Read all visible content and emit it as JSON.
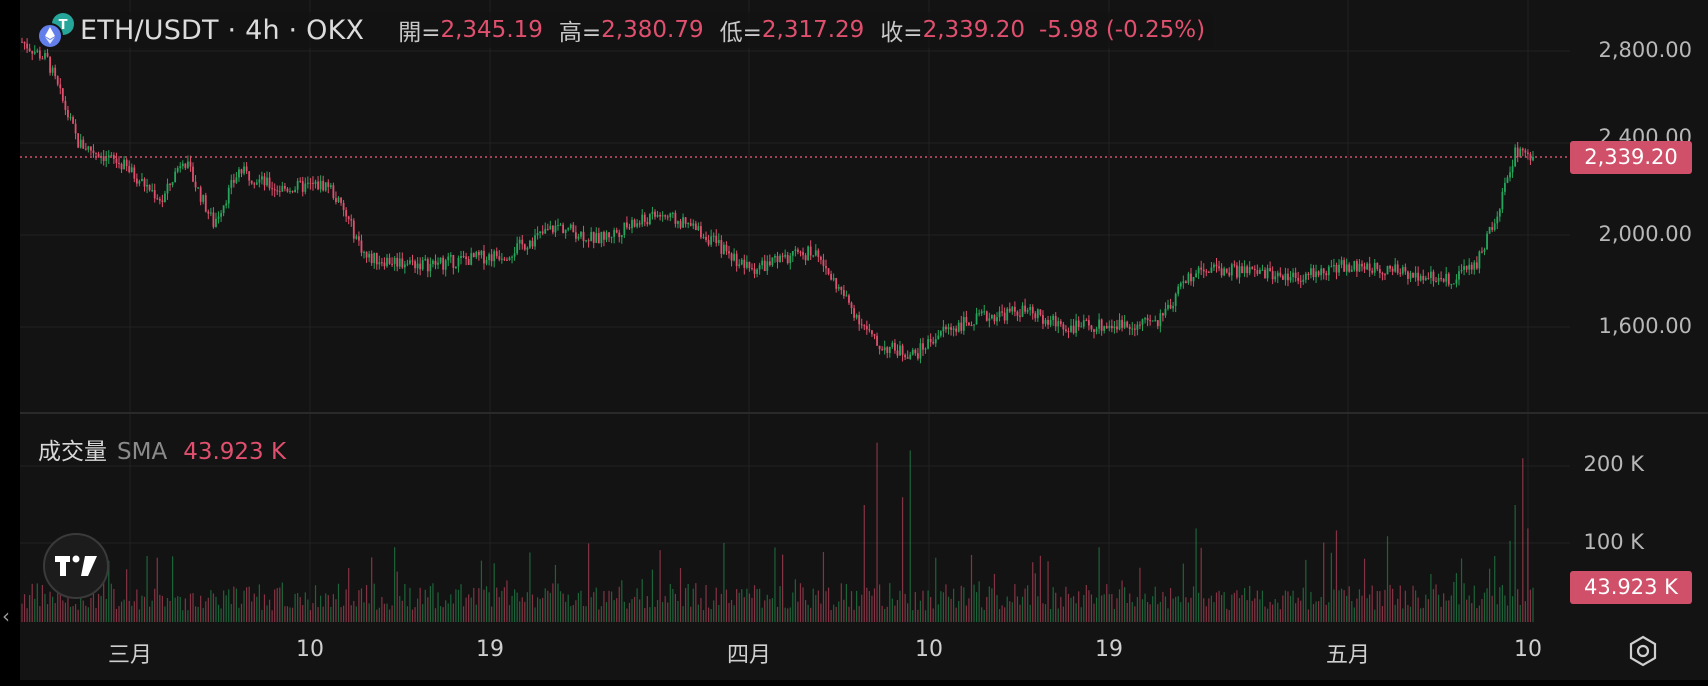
{
  "header": {
    "symbol": "ETH/USDT · 4h · OKX",
    "open_label": "開=",
    "open_value": "2,345.19",
    "high_label": "高=",
    "high_value": "2,380.79",
    "low_label": "低=",
    "low_value": "2,317.29",
    "close_label": "收=",
    "close_value": "2,339.20",
    "change": "-5.98 (-0.25%)"
  },
  "price_axis": {
    "labels": [
      "2,800.00",
      "2,400.00",
      "2,000.00",
      "1,600.00"
    ],
    "current_price": "2,339.20"
  },
  "volume": {
    "title": "成交量",
    "sma_label": "SMA",
    "sma_value": "43.923 K",
    "axis_labels": [
      "200 K",
      "100 K"
    ],
    "current_value": "43.923 K"
  },
  "time_axis": {
    "labels": [
      "三月",
      "10",
      "19",
      "四月",
      "10",
      "19",
      "五月",
      "10"
    ]
  },
  "icons": {
    "logo": "eth-usdt-coin-icon",
    "tradingview": "tradingview-logo-icon",
    "settings": "settings-gear-icon",
    "back": "chevron-left-icon"
  },
  "colors": {
    "up": "#26a65b",
    "down": "#e0506e",
    "background": "#131313"
  },
  "chart_data": {
    "type": "candlestick",
    "interval": "4h",
    "y_range": [
      1350,
      2950
    ],
    "volume_range": [
      0,
      250000
    ],
    "price_anchors": [
      {
        "i": 0,
        "p": 2840
      },
      {
        "i": 10,
        "p": 2760
      },
      {
        "i": 22,
        "p": 2400
      },
      {
        "i": 40,
        "p": 2300
      },
      {
        "i": 55,
        "p": 2150
      },
      {
        "i": 63,
        "p": 2340
      },
      {
        "i": 75,
        "p": 2050
      },
      {
        "i": 85,
        "p": 2280
      },
      {
        "i": 100,
        "p": 2200
      },
      {
        "i": 120,
        "p": 2220
      },
      {
        "i": 127,
        "p": 2080
      },
      {
        "i": 135,
        "p": 1900
      },
      {
        "i": 160,
        "p": 1870
      },
      {
        "i": 190,
        "p": 1920
      },
      {
        "i": 210,
        "p": 2040
      },
      {
        "i": 225,
        "p": 1980
      },
      {
        "i": 250,
        "p": 2090
      },
      {
        "i": 265,
        "p": 2020
      },
      {
        "i": 285,
        "p": 1850
      },
      {
        "i": 310,
        "p": 1930
      },
      {
        "i": 318,
        "p": 1800
      },
      {
        "i": 335,
        "p": 1520
      },
      {
        "i": 350,
        "p": 1480
      },
      {
        "i": 360,
        "p": 1580
      },
      {
        "i": 375,
        "p": 1640
      },
      {
        "i": 392,
        "p": 1670
      },
      {
        "i": 410,
        "p": 1600
      },
      {
        "i": 432,
        "p": 1610
      },
      {
        "i": 445,
        "p": 1620
      },
      {
        "i": 460,
        "p": 1860
      },
      {
        "i": 500,
        "p": 1820
      },
      {
        "i": 520,
        "p": 1870
      },
      {
        "i": 560,
        "p": 1810
      },
      {
        "i": 570,
        "p": 1880
      },
      {
        "i": 578,
        "p": 2100
      },
      {
        "i": 585,
        "p": 2360
      },
      {
        "i": 592,
        "p": 2339
      }
    ]
  }
}
